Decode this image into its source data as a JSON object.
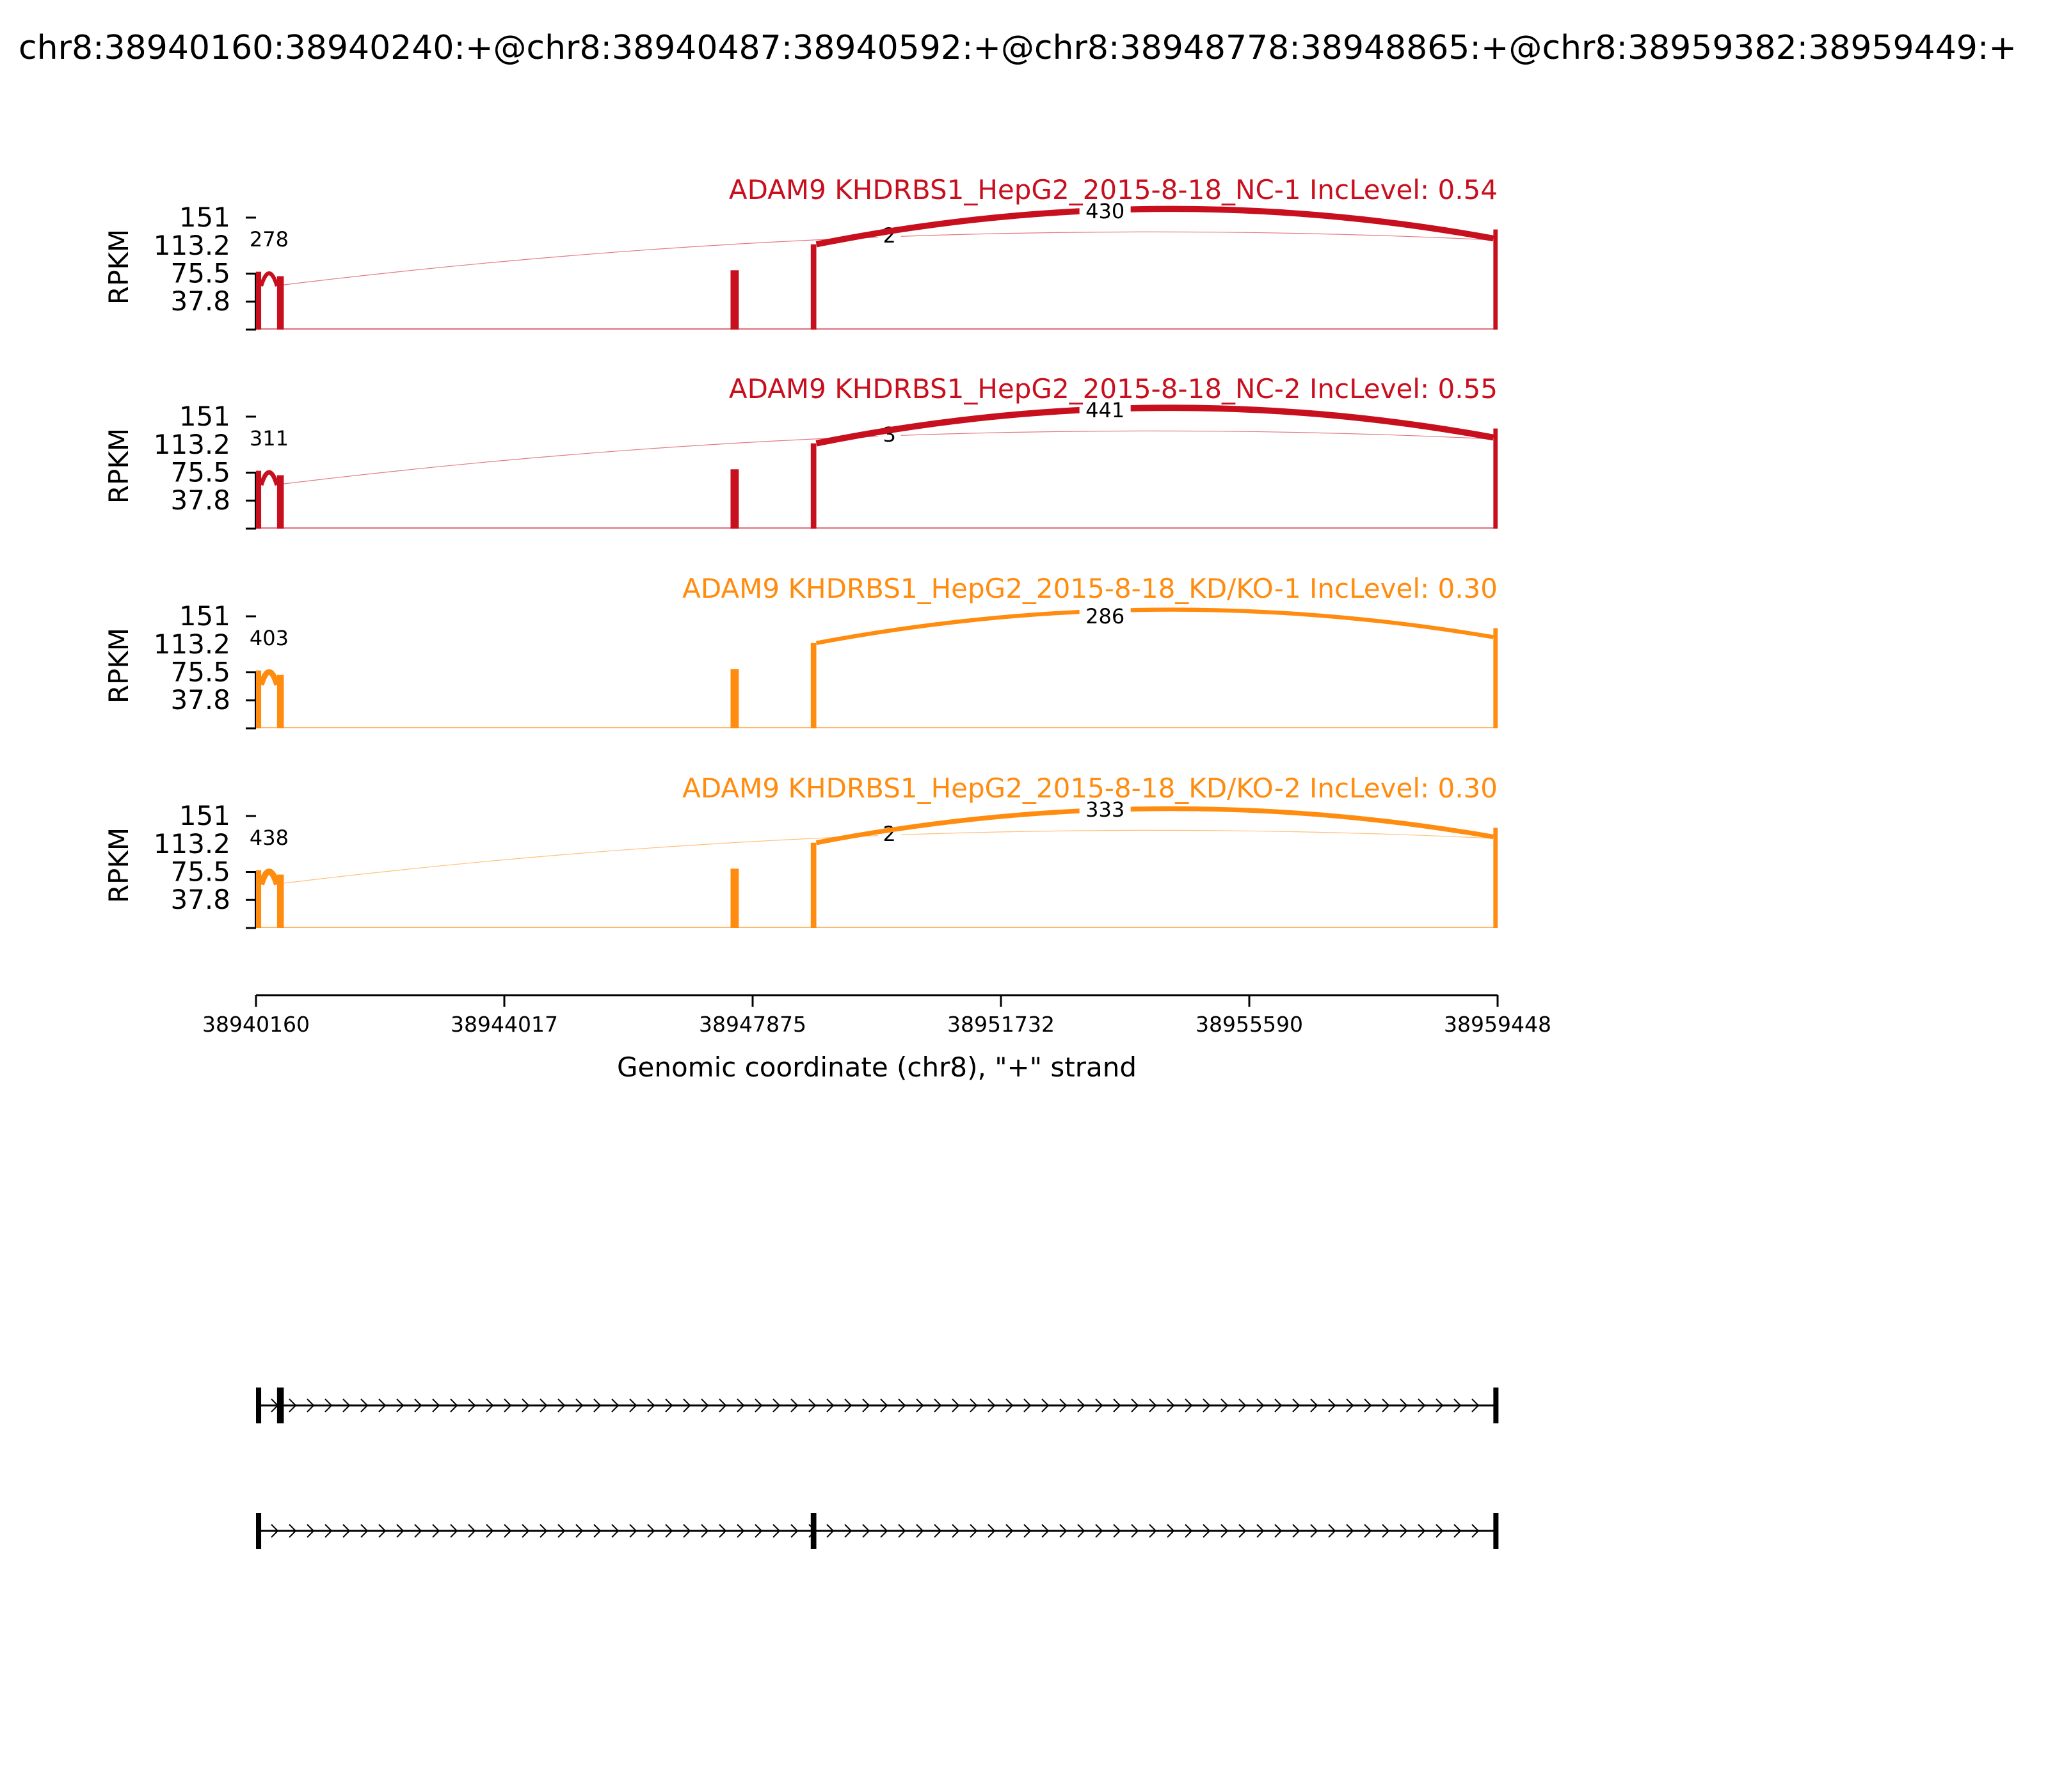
{
  "chart_data": {
    "type": "area",
    "title": "chr8:38940160:38940240:+@chr8:38940487:38940592:+@chr8:38948778:38948865:+@chr8:38959382:38959449:+",
    "ylabel": "RPKM",
    "xlabel": "Genomic coordinate (chr8), \"+\" strand",
    "ylim": [
      0,
      151
    ],
    "yticks": [
      "151",
      "113.2",
      "75.5",
      "37.8"
    ],
    "xlim": [
      38940160,
      38959448
    ],
    "xticks": [
      "38940160",
      "38944017",
      "38947875",
      "38951732",
      "38955590",
      "38959448"
    ],
    "exons": [
      {
        "start": 38940160,
        "end": 38940240,
        "coverage": 78
      },
      {
        "start": 38940487,
        "end": 38940592,
        "coverage": 72
      },
      {
        "start": 38947532,
        "end": 38947660,
        "coverage": 80
      },
      {
        "start": 38948778,
        "end": 38948865,
        "coverage": 115
      },
      {
        "start": 38959382,
        "end": 38959449,
        "coverage": 135
      }
    ],
    "series": [
      {
        "name": "ADAM9 KHDRBS1_HepG2_2015-8-18_NC-1 IncLevel: 0.54",
        "color": "#c80f1e",
        "junctions": [
          {
            "label": "278",
            "start": 38940240,
            "end": 38940487,
            "count": 278
          },
          {
            "label": "2",
            "start": 38940592,
            "end": 38959382,
            "count": 2
          },
          {
            "label": "430",
            "start": 38948865,
            "end": 38959382,
            "count": 430
          }
        ]
      },
      {
        "name": "ADAM9 KHDRBS1_HepG2_2015-8-18_NC-2 IncLevel: 0.55",
        "color": "#c80f1e",
        "junctions": [
          {
            "label": "311",
            "start": 38940240,
            "end": 38940487,
            "count": 311
          },
          {
            "label": "3",
            "start": 38940592,
            "end": 38959382,
            "count": 3
          },
          {
            "label": "441",
            "start": 38948865,
            "end": 38959382,
            "count": 441
          }
        ]
      },
      {
        "name": "ADAM9 KHDRBS1_HepG2_2015-8-18_KD/KO-1 IncLevel: 0.30",
        "color": "#ff8c0f",
        "junctions": [
          {
            "label": "403",
            "start": 38940240,
            "end": 38940487,
            "count": 403
          },
          {
            "label": "286",
            "start": 38948865,
            "end": 38959382,
            "count": 286
          }
        ]
      },
      {
        "name": "ADAM9 KHDRBS1_HepG2_2015-8-18_KD/KO-2 IncLevel: 0.30",
        "color": "#ff8c0f",
        "junctions": [
          {
            "label": "438",
            "start": 38940240,
            "end": 38940487,
            "count": 438
          },
          {
            "label": "2",
            "start": 38940592,
            "end": 38959382,
            "count": 2
          },
          {
            "label": "333",
            "start": 38948865,
            "end": 38959382,
            "count": 333
          }
        ]
      }
    ],
    "isoforms": [
      {
        "exons": [
          [
            38940160,
            38940240
          ],
          [
            38940487,
            38940592
          ],
          [
            38959382,
            38959449
          ]
        ]
      },
      {
        "exons": [
          [
            38940160,
            38940240
          ],
          [
            38948778,
            38948865
          ],
          [
            38959382,
            38959449
          ]
        ]
      }
    ]
  }
}
